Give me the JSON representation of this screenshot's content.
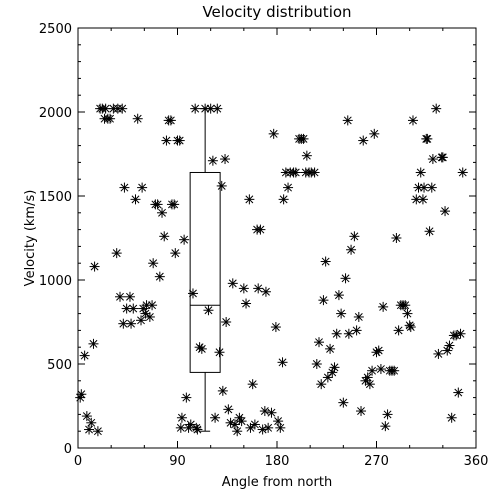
{
  "chart_data": {
    "type": "scatter",
    "title": "Velocity distribution",
    "xlabel": "Angle from north",
    "ylabel": "Velocity (km/s)",
    "xlim": [
      0,
      360
    ],
    "ylim": [
      0,
      2500
    ],
    "xticks": [
      0,
      90,
      180,
      270,
      360
    ],
    "yticks": [
      0,
      500,
      1000,
      1500,
      2000,
      2500
    ],
    "grid": false,
    "marker": "asterisk",
    "points": [
      [
        2,
        300
      ],
      [
        3,
        320
      ],
      [
        6,
        550
      ],
      [
        8,
        190
      ],
      [
        10,
        110
      ],
      [
        12,
        150
      ],
      [
        14,
        620
      ],
      [
        15,
        1080
      ],
      [
        18,
        100
      ],
      [
        20,
        2020
      ],
      [
        22,
        2020
      ],
      [
        24,
        1960
      ],
      [
        25,
        2020
      ],
      [
        27,
        1960
      ],
      [
        29,
        1960
      ],
      [
        32,
        2020
      ],
      [
        35,
        1160
      ],
      [
        36,
        2020
      ],
      [
        38,
        900
      ],
      [
        40,
        2020
      ],
      [
        41,
        740
      ],
      [
        42,
        1550
      ],
      [
        44,
        830
      ],
      [
        47,
        900
      ],
      [
        48,
        740
      ],
      [
        50,
        830
      ],
      [
        52,
        1480
      ],
      [
        54,
        1960
      ],
      [
        57,
        760
      ],
      [
        58,
        1550
      ],
      [
        59,
        830
      ],
      [
        61,
        800
      ],
      [
        62,
        850
      ],
      [
        65,
        780
      ],
      [
        67,
        850
      ],
      [
        68,
        1100
      ],
      [
        70,
        1450
      ],
      [
        72,
        1450
      ],
      [
        74,
        1020
      ],
      [
        76,
        1400
      ],
      [
        78,
        1260
      ],
      [
        80,
        1830
      ],
      [
        82,
        1950
      ],
      [
        84,
        1950
      ],
      [
        85,
        1450
      ],
      [
        87,
        1450
      ],
      [
        88,
        1160
      ],
      [
        90,
        1830
      ],
      [
        92,
        1830
      ],
      [
        93,
        120
      ],
      [
        94,
        180
      ],
      [
        96,
        1240
      ],
      [
        98,
        300
      ],
      [
        100,
        120
      ],
      [
        102,
        140
      ],
      [
        104,
        920
      ],
      [
        106,
        2020
      ],
      [
        107,
        120
      ],
      [
        108,
        110
      ],
      [
        110,
        600
      ],
      [
        112,
        590
      ],
      [
        115,
        2020
      ],
      [
        118,
        820
      ],
      [
        120,
        2020
      ],
      [
        122,
        1710
      ],
      [
        124,
        180
      ],
      [
        126,
        2020
      ],
      [
        128,
        570
      ],
      [
        130,
        1560
      ],
      [
        131,
        340
      ],
      [
        133,
        1720
      ],
      [
        134,
        750
      ],
      [
        136,
        230
      ],
      [
        138,
        150
      ],
      [
        140,
        980
      ],
      [
        142,
        140
      ],
      [
        144,
        100
      ],
      [
        146,
        180
      ],
      [
        148,
        160
      ],
      [
        150,
        950
      ],
      [
        152,
        860
      ],
      [
        155,
        1480
      ],
      [
        156,
        120
      ],
      [
        158,
        380
      ],
      [
        160,
        140
      ],
      [
        162,
        1300
      ],
      [
        163,
        950
      ],
      [
        165,
        1300
      ],
      [
        167,
        110
      ],
      [
        169,
        220
      ],
      [
        170,
        930
      ],
      [
        172,
        120
      ],
      [
        175,
        210
      ],
      [
        177,
        1870
      ],
      [
        179,
        720
      ],
      [
        181,
        160
      ],
      [
        183,
        120
      ],
      [
        185,
        510
      ],
      [
        186,
        1480
      ],
      [
        188,
        1640
      ],
      [
        190,
        1550
      ],
      [
        192,
        1640
      ],
      [
        195,
        1640
      ],
      [
        197,
        1640
      ],
      [
        200,
        1840
      ],
      [
        202,
        1840
      ],
      [
        204,
        1840
      ],
      [
        206,
        1640
      ],
      [
        207,
        1740
      ],
      [
        209,
        1640
      ],
      [
        211,
        1640
      ],
      [
        214,
        1640
      ],
      [
        216,
        500
      ],
      [
        218,
        630
      ],
      [
        220,
        380
      ],
      [
        222,
        880
      ],
      [
        224,
        1110
      ],
      [
        226,
        420
      ],
      [
        228,
        590
      ],
      [
        230,
        450
      ],
      [
        232,
        480
      ],
      [
        234,
        680
      ],
      [
        236,
        910
      ],
      [
        238,
        800
      ],
      [
        240,
        270
      ],
      [
        242,
        1010
      ],
      [
        244,
        1950
      ],
      [
        245,
        680
      ],
      [
        247,
        1180
      ],
      [
        250,
        1260
      ],
      [
        252,
        700
      ],
      [
        254,
        780
      ],
      [
        256,
        220
      ],
      [
        258,
        1830
      ],
      [
        260,
        400
      ],
      [
        262,
        420
      ],
      [
        264,
        380
      ],
      [
        266,
        460
      ],
      [
        268,
        1870
      ],
      [
        270,
        570
      ],
      [
        272,
        580
      ],
      [
        274,
        470
      ],
      [
        276,
        840
      ],
      [
        278,
        130
      ],
      [
        280,
        200
      ],
      [
        282,
        460
      ],
      [
        284,
        460
      ],
      [
        286,
        460
      ],
      [
        288,
        1250
      ],
      [
        290,
        700
      ],
      [
        292,
        850
      ],
      [
        294,
        850
      ],
      [
        296,
        850
      ],
      [
        298,
        800
      ],
      [
        300,
        730
      ],
      [
        301,
        720
      ],
      [
        303,
        1950
      ],
      [
        306,
        1480
      ],
      [
        308,
        1550
      ],
      [
        310,
        1640
      ],
      [
        312,
        1480
      ],
      [
        313,
        1550
      ],
      [
        315,
        1840
      ],
      [
        316,
        1840
      ],
      [
        318,
        1290
      ],
      [
        320,
        1550
      ],
      [
        321,
        1720
      ],
      [
        324,
        2020
      ],
      [
        326,
        560
      ],
      [
        329,
        1730
      ],
      [
        330,
        1730
      ],
      [
        332,
        1410
      ],
      [
        334,
        580
      ],
      [
        336,
        610
      ],
      [
        338,
        180
      ],
      [
        340,
        670
      ],
      [
        342,
        670
      ],
      [
        344,
        330
      ],
      [
        346,
        680
      ],
      [
        348,
        1640
      ]
    ],
    "boxplot": {
      "x": 115,
      "min": 100,
      "q1": 450,
      "median": 850,
      "q3": 1640,
      "max": 2020
    }
  }
}
